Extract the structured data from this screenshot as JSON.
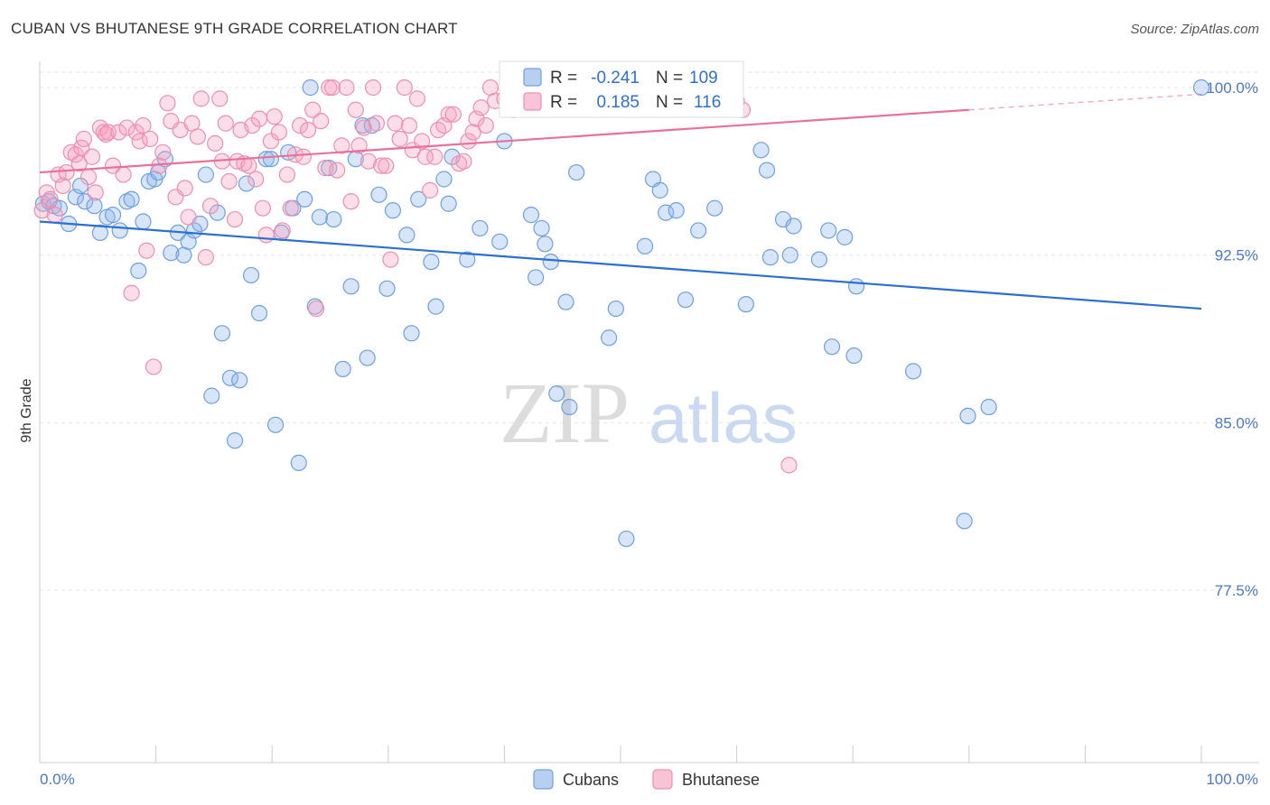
{
  "title": "CUBAN VS BHUTANESE 9TH GRADE CORRELATION CHART",
  "source": "Source: ZipAtlas.com",
  "watermark": {
    "zip": "ZIP",
    "atlas": "atlas"
  },
  "legend": {
    "rows": [
      {
        "r_label": "R =",
        "r_value": "-0.241",
        "n_label": "N =",
        "n_value": "109"
      },
      {
        "r_label": "R =",
        "r_value": "0.185",
        "n_label": "N =",
        "n_value": "116"
      }
    ]
  },
  "chart_data": {
    "type": "scatter",
    "title": "CUBAN VS BHUTANESE 9TH GRADE CORRELATION CHART",
    "xlabel": "",
    "ylabel": "9th Grade",
    "xlim": [
      0,
      100
    ],
    "ylim": [
      70.0,
      101.5
    ],
    "x_tick_labels": [
      "0.0%",
      "100.0%"
    ],
    "y_ticks": [
      77.5,
      85.0,
      92.5,
      100.0
    ],
    "y_tick_labels": [
      "77.5%",
      "85.0%",
      "92.5%",
      "100.0%"
    ],
    "grid": true,
    "colors": {
      "Cubans": "#6f9fe0",
      "Bhutanese": "#ee8fb0",
      "Cubans_line": "#2b6fd0",
      "Bhutanese_line": "#e8709a"
    },
    "series": [
      {
        "name": "Cubans",
        "r": -0.241,
        "n": 109,
        "trend": {
          "x": [
            0,
            100
          ],
          "y": [
            94.0,
            90.1
          ]
        },
        "points": [
          [
            0.3,
            94.8
          ],
          [
            0.8,
            94.9
          ],
          [
            1.2,
            94.7
          ],
          [
            1.7,
            94.6
          ],
          [
            2.5,
            93.9
          ],
          [
            3.1,
            95.1
          ],
          [
            3.5,
            95.6
          ],
          [
            3.9,
            94.9
          ],
          [
            4.7,
            94.7
          ],
          [
            5.2,
            93.5
          ],
          [
            5.8,
            94.2
          ],
          [
            6.3,
            94.3
          ],
          [
            6.9,
            93.6
          ],
          [
            7.5,
            94.9
          ],
          [
            7.9,
            95.0
          ],
          [
            8.5,
            91.8
          ],
          [
            8.9,
            94.0
          ],
          [
            9.4,
            95.8
          ],
          [
            9.9,
            95.9
          ],
          [
            10.2,
            96.2
          ],
          [
            10.8,
            96.8
          ],
          [
            11.3,
            92.6
          ],
          [
            11.9,
            93.5
          ],
          [
            12.4,
            92.5
          ],
          [
            12.8,
            93.1
          ],
          [
            13.3,
            93.6
          ],
          [
            13.8,
            93.9
          ],
          [
            14.3,
            96.1
          ],
          [
            14.8,
            86.2
          ],
          [
            15.3,
            94.4
          ],
          [
            15.7,
            89.0
          ],
          [
            16.4,
            87.0
          ],
          [
            16.8,
            84.2
          ],
          [
            17.2,
            86.9
          ],
          [
            17.8,
            95.7
          ],
          [
            18.2,
            91.6
          ],
          [
            18.9,
            89.9
          ],
          [
            19.5,
            96.8
          ],
          [
            19.9,
            96.8
          ],
          [
            20.3,
            84.9
          ],
          [
            20.8,
            93.5
          ],
          [
            21.4,
            97.1
          ],
          [
            21.8,
            94.6
          ],
          [
            22.3,
            83.2
          ],
          [
            22.8,
            95.0
          ],
          [
            23.3,
            100.0
          ],
          [
            23.7,
            90.2
          ],
          [
            24.1,
            94.2
          ],
          [
            24.9,
            96.4
          ],
          [
            25.3,
            94.1
          ],
          [
            26.1,
            87.4
          ],
          [
            26.8,
            91.1
          ],
          [
            27.2,
            96.8
          ],
          [
            27.8,
            98.3
          ],
          [
            28.2,
            87.9
          ],
          [
            28.6,
            98.3
          ],
          [
            29.2,
            95.2
          ],
          [
            29.9,
            91.0
          ],
          [
            30.4,
            94.5
          ],
          [
            31.6,
            93.4
          ],
          [
            32.0,
            89.0
          ],
          [
            32.6,
            95.0
          ],
          [
            33.7,
            92.2
          ],
          [
            34.1,
            90.2
          ],
          [
            34.8,
            95.9
          ],
          [
            35.2,
            94.8
          ],
          [
            35.5,
            96.9
          ],
          [
            36.8,
            92.3
          ],
          [
            37.9,
            93.7
          ],
          [
            39.6,
            93.1
          ],
          [
            40.0,
            97.6
          ],
          [
            42.3,
            94.3
          ],
          [
            42.7,
            91.5
          ],
          [
            43.2,
            93.7
          ],
          [
            43.5,
            93.0
          ],
          [
            44.0,
            92.2
          ],
          [
            44.5,
            86.3
          ],
          [
            45.3,
            90.4
          ],
          [
            45.6,
            85.7
          ],
          [
            46.2,
            96.2
          ],
          [
            49.0,
            88.8
          ],
          [
            49.6,
            90.1
          ],
          [
            50.5,
            79.8
          ],
          [
            52.1,
            92.9
          ],
          [
            52.8,
            95.9
          ],
          [
            53.4,
            95.4
          ],
          [
            53.9,
            94.4
          ],
          [
            54.8,
            94.5
          ],
          [
            55.6,
            90.5
          ],
          [
            56.7,
            93.6
          ],
          [
            58.1,
            94.6
          ],
          [
            60.8,
            90.3
          ],
          [
            62.1,
            97.2
          ],
          [
            62.6,
            96.3
          ],
          [
            62.9,
            92.4
          ],
          [
            64.0,
            94.1
          ],
          [
            64.6,
            92.5
          ],
          [
            64.9,
            93.8
          ],
          [
            67.1,
            92.3
          ],
          [
            67.9,
            93.6
          ],
          [
            68.2,
            88.4
          ],
          [
            69.3,
            93.3
          ],
          [
            70.1,
            88.0
          ],
          [
            70.3,
            91.1
          ],
          [
            75.2,
            87.3
          ],
          [
            79.6,
            80.6
          ],
          [
            79.9,
            85.3
          ],
          [
            81.7,
            85.7
          ],
          [
            100.0,
            100.0
          ]
        ]
      },
      {
        "name": "Bhutanese",
        "r": 0.185,
        "n": 116,
        "trend": {
          "x": [
            0,
            80
          ],
          "y": [
            96.2,
            99.0
          ]
        },
        "trend_dashed": {
          "x": [
            80,
            100
          ],
          "y": [
            99.0,
            99.7
          ]
        },
        "points": [
          [
            0.2,
            94.5
          ],
          [
            0.6,
            95.3
          ],
          [
            0.9,
            95.0
          ],
          [
            1.3,
            94.3
          ],
          [
            1.6,
            96.1
          ],
          [
            2.0,
            95.6
          ],
          [
            2.3,
            96.2
          ],
          [
            2.7,
            97.1
          ],
          [
            3.1,
            97.0
          ],
          [
            3.4,
            96.6
          ],
          [
            3.6,
            97.3
          ],
          [
            3.8,
            97.7
          ],
          [
            4.2,
            96.0
          ],
          [
            4.5,
            96.9
          ],
          [
            4.8,
            95.3
          ],
          [
            5.2,
            98.2
          ],
          [
            5.5,
            98.0
          ],
          [
            5.7,
            97.9
          ],
          [
            5.9,
            98.0
          ],
          [
            6.3,
            96.5
          ],
          [
            6.8,
            98.0
          ],
          [
            7.2,
            96.1
          ],
          [
            7.5,
            98.2
          ],
          [
            7.9,
            90.8
          ],
          [
            8.3,
            98.0
          ],
          [
            8.6,
            97.6
          ],
          [
            8.9,
            98.3
          ],
          [
            9.2,
            92.7
          ],
          [
            9.5,
            97.7
          ],
          [
            9.8,
            87.5
          ],
          [
            10.3,
            96.5
          ],
          [
            10.6,
            97.1
          ],
          [
            11.0,
            99.3
          ],
          [
            11.3,
            98.5
          ],
          [
            11.7,
            95.1
          ],
          [
            12.1,
            98.1
          ],
          [
            12.5,
            95.5
          ],
          [
            12.8,
            94.2
          ],
          [
            13.1,
            98.4
          ],
          [
            13.6,
            97.8
          ],
          [
            13.9,
            99.5
          ],
          [
            14.3,
            92.4
          ],
          [
            14.7,
            94.7
          ],
          [
            15.1,
            97.5
          ],
          [
            15.5,
            99.5
          ],
          [
            15.7,
            96.7
          ],
          [
            16.0,
            98.4
          ],
          [
            16.3,
            95.8
          ],
          [
            16.8,
            94.1
          ],
          [
            17.0,
            96.7
          ],
          [
            17.3,
            98.1
          ],
          [
            17.6,
            96.6
          ],
          [
            18.0,
            96.5
          ],
          [
            18.3,
            98.3
          ],
          [
            18.6,
            95.9
          ],
          [
            18.9,
            98.6
          ],
          [
            19.2,
            94.6
          ],
          [
            19.5,
            93.4
          ],
          [
            19.9,
            97.6
          ],
          [
            20.2,
            98.7
          ],
          [
            20.6,
            98.0
          ],
          [
            20.9,
            93.6
          ],
          [
            21.3,
            96.1
          ],
          [
            21.6,
            94.6
          ],
          [
            22.0,
            97.0
          ],
          [
            22.4,
            98.3
          ],
          [
            22.7,
            96.9
          ],
          [
            23.1,
            98.1
          ],
          [
            23.5,
            99.0
          ],
          [
            23.8,
            90.1
          ],
          [
            24.2,
            98.5
          ],
          [
            24.6,
            96.4
          ],
          [
            24.9,
            100.0
          ],
          [
            25.2,
            100.0
          ],
          [
            25.6,
            96.3
          ],
          [
            26.0,
            97.4
          ],
          [
            26.4,
            100.0
          ],
          [
            26.8,
            94.9
          ],
          [
            27.2,
            99.0
          ],
          [
            27.5,
            97.4
          ],
          [
            27.9,
            98.2
          ],
          [
            28.3,
            96.7
          ],
          [
            28.7,
            100.0
          ],
          [
            29.0,
            98.4
          ],
          [
            29.4,
            96.5
          ],
          [
            29.8,
            96.5
          ],
          [
            30.2,
            92.3
          ],
          [
            30.6,
            98.4
          ],
          [
            31.0,
            97.7
          ],
          [
            31.4,
            100.0
          ],
          [
            31.8,
            98.3
          ],
          [
            32.1,
            97.2
          ],
          [
            32.5,
            99.5
          ],
          [
            32.9,
            97.6
          ],
          [
            33.2,
            96.9
          ],
          [
            33.6,
            95.4
          ],
          [
            34.0,
            96.9
          ],
          [
            34.3,
            98.1
          ],
          [
            34.8,
            98.3
          ],
          [
            35.2,
            98.8
          ],
          [
            35.6,
            98.8
          ],
          [
            36.1,
            96.6
          ],
          [
            36.5,
            96.7
          ],
          [
            36.9,
            97.6
          ],
          [
            37.3,
            98.0
          ],
          [
            37.6,
            98.6
          ],
          [
            38.0,
            99.1
          ],
          [
            38.4,
            98.3
          ],
          [
            38.8,
            100.0
          ],
          [
            39.2,
            99.4
          ],
          [
            40.0,
            99.5
          ],
          [
            40.8,
            99.0
          ],
          [
            41.6,
            99.6
          ],
          [
            42.5,
            100.0
          ],
          [
            60.0,
            99.4
          ],
          [
            60.5,
            99.0
          ],
          [
            64.5,
            83.1
          ]
        ]
      }
    ]
  }
}
